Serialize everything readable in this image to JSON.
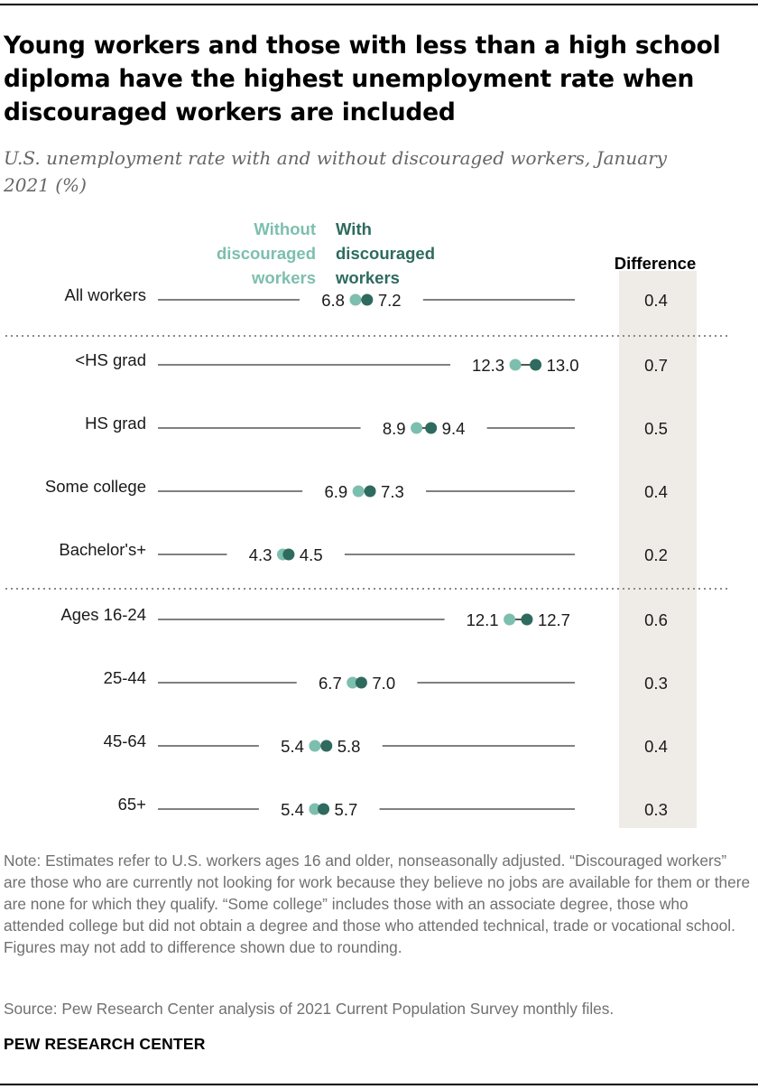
{
  "title": "Young workers and those with less than a high school diploma have the highest unemployment rate when discouraged workers are included",
  "subtitle": "U.S. unemployment rate with and without discouraged workers, January 2021 (%)",
  "legend": {
    "without": [
      "Without",
      "discouraged",
      "workers"
    ],
    "with": [
      "With",
      "discouraged",
      "workers"
    ]
  },
  "difference_header": "Difference",
  "colors": {
    "without": "#7cbfae",
    "with": "#2e6b5e",
    "line": "#808080",
    "diff_bg": "#efece7"
  },
  "chart_data": {
    "type": "dot",
    "title": "U.S. unemployment rate with and without discouraged workers, January 2021 (%)",
    "series": [
      {
        "name": "Without discouraged workers",
        "values": [
          6.8,
          12.3,
          8.9,
          6.9,
          4.3,
          12.1,
          6.7,
          5.4,
          5.4
        ]
      },
      {
        "name": "With discouraged workers",
        "values": [
          7.2,
          13.0,
          9.4,
          7.3,
          4.5,
          12.7,
          7.0,
          5.8,
          5.7
        ]
      }
    ],
    "categories": [
      "All workers",
      "<HS grad",
      "HS grad",
      "Some college",
      "Bachelor's+",
      "Ages 16-24",
      "25-44",
      "45-64",
      "65+"
    ],
    "labels_without": [
      "6.8",
      "12.3",
      "8.9",
      "6.9",
      "4.3",
      "12.1",
      "6.7",
      "5.4",
      "5.4"
    ],
    "labels_with": [
      "7.2",
      "13.0",
      "9.4",
      "7.3",
      "4.5",
      "12.7",
      "7.0",
      "5.8",
      "5.7"
    ],
    "difference": [
      "0.4",
      "0.7",
      "0.5",
      "0.4",
      "0.2",
      "0.6",
      "0.3",
      "0.4",
      "0.3"
    ],
    "groups": [
      [
        "All workers"
      ],
      [
        "<HS grad",
        "HS grad",
        "Some college",
        "Bachelor's+"
      ],
      [
        "Ages 16-24",
        "25-44",
        "45-64",
        "65+"
      ]
    ],
    "xlim": [
      0,
      14
    ]
  },
  "note": "Note: Estimates refer to U.S. workers ages 16 and older, nonseasonally adjusted. “Discouraged workers” are those who are currently not looking for work because they believe no jobs are available for them or there are none for which they qualify. “Some college” includes those with an associate degree, those who attended college but did not obtain a degree and those who attended technical, trade or vocational school. Figures may not add to difference shown due to rounding.",
  "source": "Source: Pew Research Center analysis of 2021 Current Population Survey monthly files.",
  "brand": "PEW RESEARCH CENTER"
}
